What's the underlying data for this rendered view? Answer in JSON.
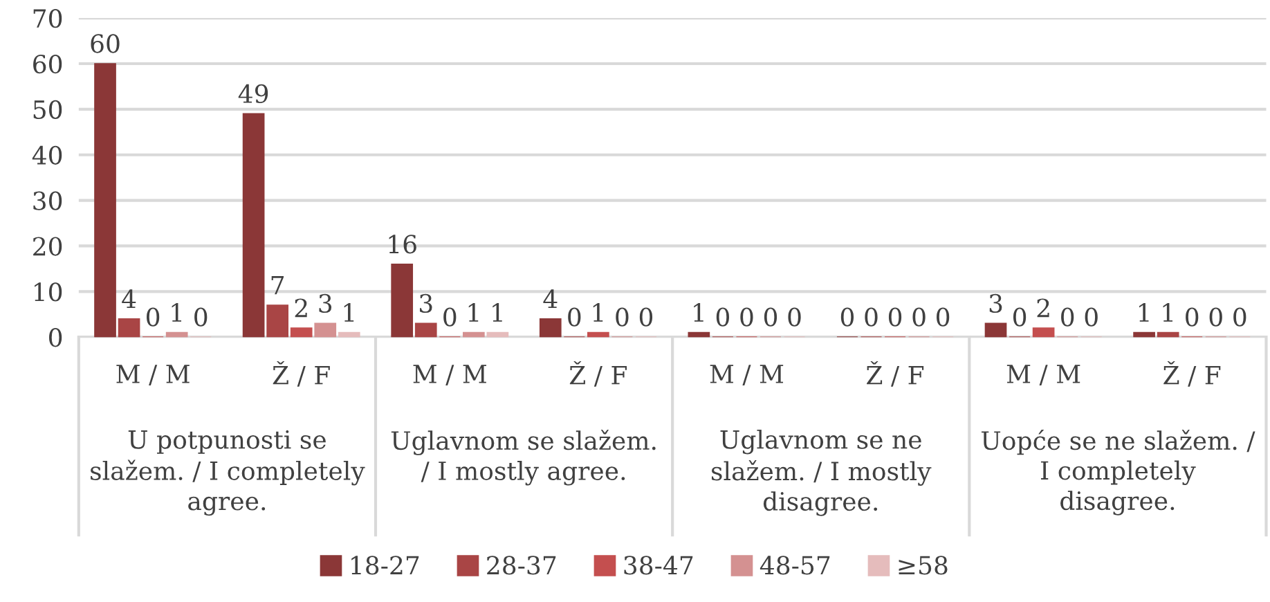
{
  "chart_data": {
    "type": "bar",
    "categories": [
      "M / M",
      "Ž / F",
      "M / M",
      "Ž / F",
      "M / M",
      "Ž / F",
      "M / M",
      "Ž / F"
    ],
    "series": [
      {
        "name": "18-27",
        "color": "#8b3737",
        "values": [
          60,
          49,
          16,
          4,
          1,
          0,
          3,
          1
        ]
      },
      {
        "name": "28-37",
        "color": "#a94545",
        "values": [
          4,
          7,
          3,
          0,
          0,
          0,
          0,
          1
        ]
      },
      {
        "name": "38-47",
        "color": "#c44f4f",
        "values": [
          0,
          2,
          0,
          1,
          0,
          0,
          2,
          0
        ]
      },
      {
        "name": "48-57",
        "color": "#d49191",
        "values": [
          1,
          3,
          1,
          0,
          0,
          0,
          0,
          0
        ]
      },
      {
        "name": "≥58",
        "color": "#e5bcbc",
        "values": [
          0,
          1,
          1,
          0,
          0,
          0,
          0,
          0
        ]
      }
    ],
    "annotations": [
      "U potpunosti se slažem. / I completely agree.",
      "Uglavnom se slažem. / I mostly agree.",
      "Uglavnom se ne slažem. / I mostly disagree.",
      "Uopće se ne slažem. / I completely disagree."
    ],
    "ylim": [
      0,
      70
    ],
    "yticks": [
      0,
      10,
      20,
      30,
      40,
      50,
      60,
      70
    ],
    "grid": "y",
    "legend": "bottom",
    "data_labels": true
  }
}
